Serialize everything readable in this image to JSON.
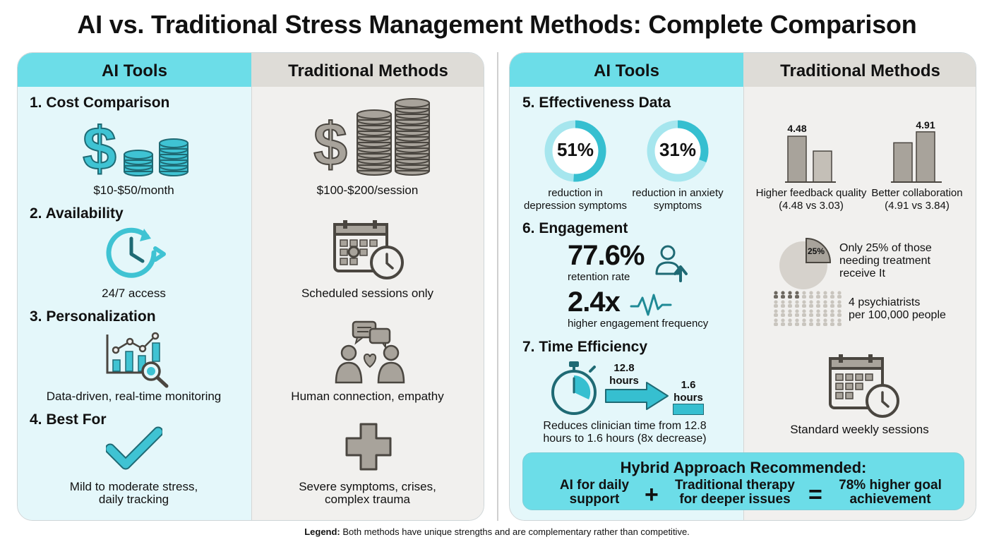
{
  "title": "AI vs. Traditional Stress Management Methods: Complete Comparison",
  "headers": {
    "ai": "AI Tools",
    "traditional": "Traditional Methods"
  },
  "left": {
    "cost": {
      "heading": "1. Cost Comparison",
      "ai_caption": "$10-$50/month",
      "tr_caption": "$100-$200/session"
    },
    "availability": {
      "heading": "2. Availability",
      "ai_caption": "24/7 access",
      "tr_caption": "Scheduled sessions only"
    },
    "personalization": {
      "heading": "3. Personalization",
      "ai_caption": "Data-driven, real-time monitoring",
      "tr_caption": "Human connection, empathy"
    },
    "best_for": {
      "heading": "4. Best For",
      "ai_caption": [
        "Mild to moderate stress,",
        "daily tracking"
      ],
      "tr_caption": [
        "Severe symptoms, crises,",
        "complex trauma"
      ]
    }
  },
  "right": {
    "effectiveness": {
      "heading": "5. Effectiveness Data",
      "rings": [
        {
          "value": 51,
          "label": "51%",
          "caption": [
            "reduction in",
            "depression symptoms"
          ]
        },
        {
          "value": 31,
          "label": "31%",
          "caption": [
            "reduction in anxiety",
            "symptoms"
          ]
        }
      ],
      "bars": [
        {
          "value_label": "4.48",
          "values": [
            4.48,
            3.03
          ],
          "caption": [
            "Higher feedback quality",
            "(4.48 vs 3.03)"
          ]
        },
        {
          "value_label": "4.91",
          "values": [
            4.91,
            3.84
          ],
          "caption": [
            "Better collaboration",
            "(4.91 vs 3.84)"
          ]
        }
      ]
    },
    "engagement": {
      "heading": "6. Engagement",
      "retention_value": "77.6%",
      "retention_label": "retention rate",
      "frequency_value": "2.4x",
      "frequency_label": "higher engagement frequency",
      "pie_value": 25,
      "pie_label": "25%",
      "pie_caption": [
        "Only 25% of those",
        "needing treatment",
        "receive It"
      ],
      "psych_caption": [
        "4 psychiatrists",
        "per 100,000 people"
      ],
      "psych_highlighted": 4
    },
    "time": {
      "heading": "7. Time Efficiency",
      "from_value": [
        "12.8",
        "hours"
      ],
      "to_value": [
        "1.6",
        "hours"
      ],
      "caption": [
        "Reduces clinician time from 12.8",
        "hours to 1.6 hours (8x decrease)"
      ],
      "tr_caption": "Standard weekly sessions"
    }
  },
  "hybrid": {
    "title": "Hybrid Approach Recommended:",
    "ai_part": [
      "AI for daily",
      "support"
    ],
    "plus": "+",
    "tr_part": [
      "Traditional therapy",
      "for deeper issues"
    ],
    "equals": "=",
    "result": [
      "78% higher goal",
      "achievement"
    ]
  },
  "legend": {
    "label": "Legend:",
    "text": "Both methods have unique strengths and are complementary rather than competitive."
  },
  "colors": {
    "ai_header": "#6cdde8",
    "ai_bg": "#e4f7fa",
    "tr_header": "#dedcd7",
    "tr_bg": "#f1f0ee",
    "teal_icon": "#3fc3d3",
    "grey_icon": "#a8a39b"
  },
  "icons": [
    "dollar-icon",
    "coin-stack-icon",
    "clock-refresh-icon",
    "calendar-clock-icon",
    "chart-magnifier-icon",
    "people-heart-icon",
    "checkmark-icon",
    "medical-cross-icon",
    "user-up-icon",
    "pulse-icon",
    "stopwatch-icon",
    "arrow-icon"
  ]
}
